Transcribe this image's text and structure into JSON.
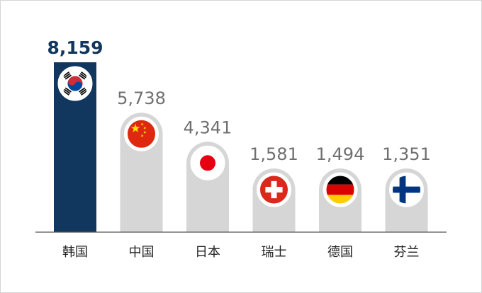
{
  "chart_data": {
    "type": "bar",
    "categories": [
      "韩国",
      "中国",
      "日本",
      "瑞士",
      "德国",
      "芬兰"
    ],
    "values": [
      8159,
      5738,
      4341,
      1581,
      1494,
      1351
    ],
    "value_labels": [
      "8,159",
      "5,738",
      "4,341",
      "1,581",
      "1,494",
      "1,351"
    ],
    "flag_icons": [
      "south-korea-flag-icon",
      "china-flag-icon",
      "japan-flag-icon",
      "switzerland-flag-icon",
      "germany-flag-icon",
      "finland-flag-icon"
    ],
    "highlight_index": 0,
    "colors": {
      "highlight_bar": "#12375f",
      "highlight_label": "#12375f",
      "bar": "#d6d6d6",
      "label": "#6f6f6f",
      "category_label": "#222222",
      "baseline": "#555555"
    }
  }
}
